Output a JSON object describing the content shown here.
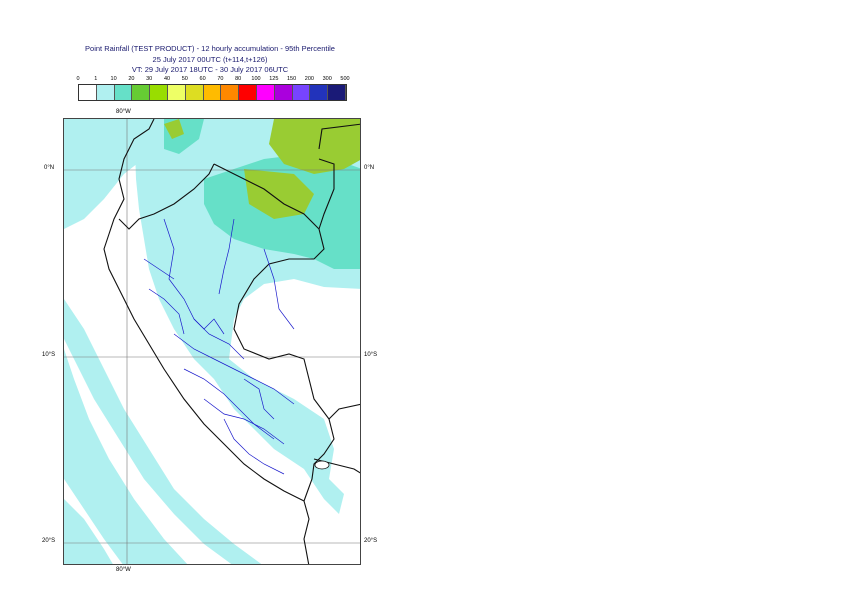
{
  "title": {
    "line1": "Point Rainfall (TEST PRODUCT) - 12 hourly accumulation - 95th Percentile",
    "line2": "25 July 2017 00UTC (t+114,t+126)",
    "line3": "VT: 29 July 2017 18UTC - 30 July 2017 06UTC"
  },
  "legend": {
    "thresholds": [
      "0",
      "1",
      "10",
      "20",
      "30",
      "40",
      "50",
      "60",
      "70",
      "80",
      "100",
      "125",
      "150",
      "200",
      "300",
      "500"
    ],
    "colors": [
      "#ffffff",
      "#b0f0f0",
      "#66e0c8",
      "#66cc33",
      "#99dd00",
      "#eeff66",
      "#dddd22",
      "#ffbb00",
      "#ff8800",
      "#ff0000",
      "#ff00ff",
      "#aa00dd",
      "#7744ff",
      "#2233bb",
      "#1a1a77"
    ]
  },
  "axes": {
    "lon_top": "80°W",
    "lon_bottom": "80°W",
    "lat_left": [
      "0°N",
      "10°S",
      "20°S"
    ],
    "lat_right": [
      "0°N",
      "10°S",
      "20°S"
    ]
  },
  "map_colors": {
    "light": "#b0f0f0",
    "medium": "#66e0c8",
    "green": "#99cc33",
    "border": "#111111",
    "rivers": "#1a1acc"
  }
}
